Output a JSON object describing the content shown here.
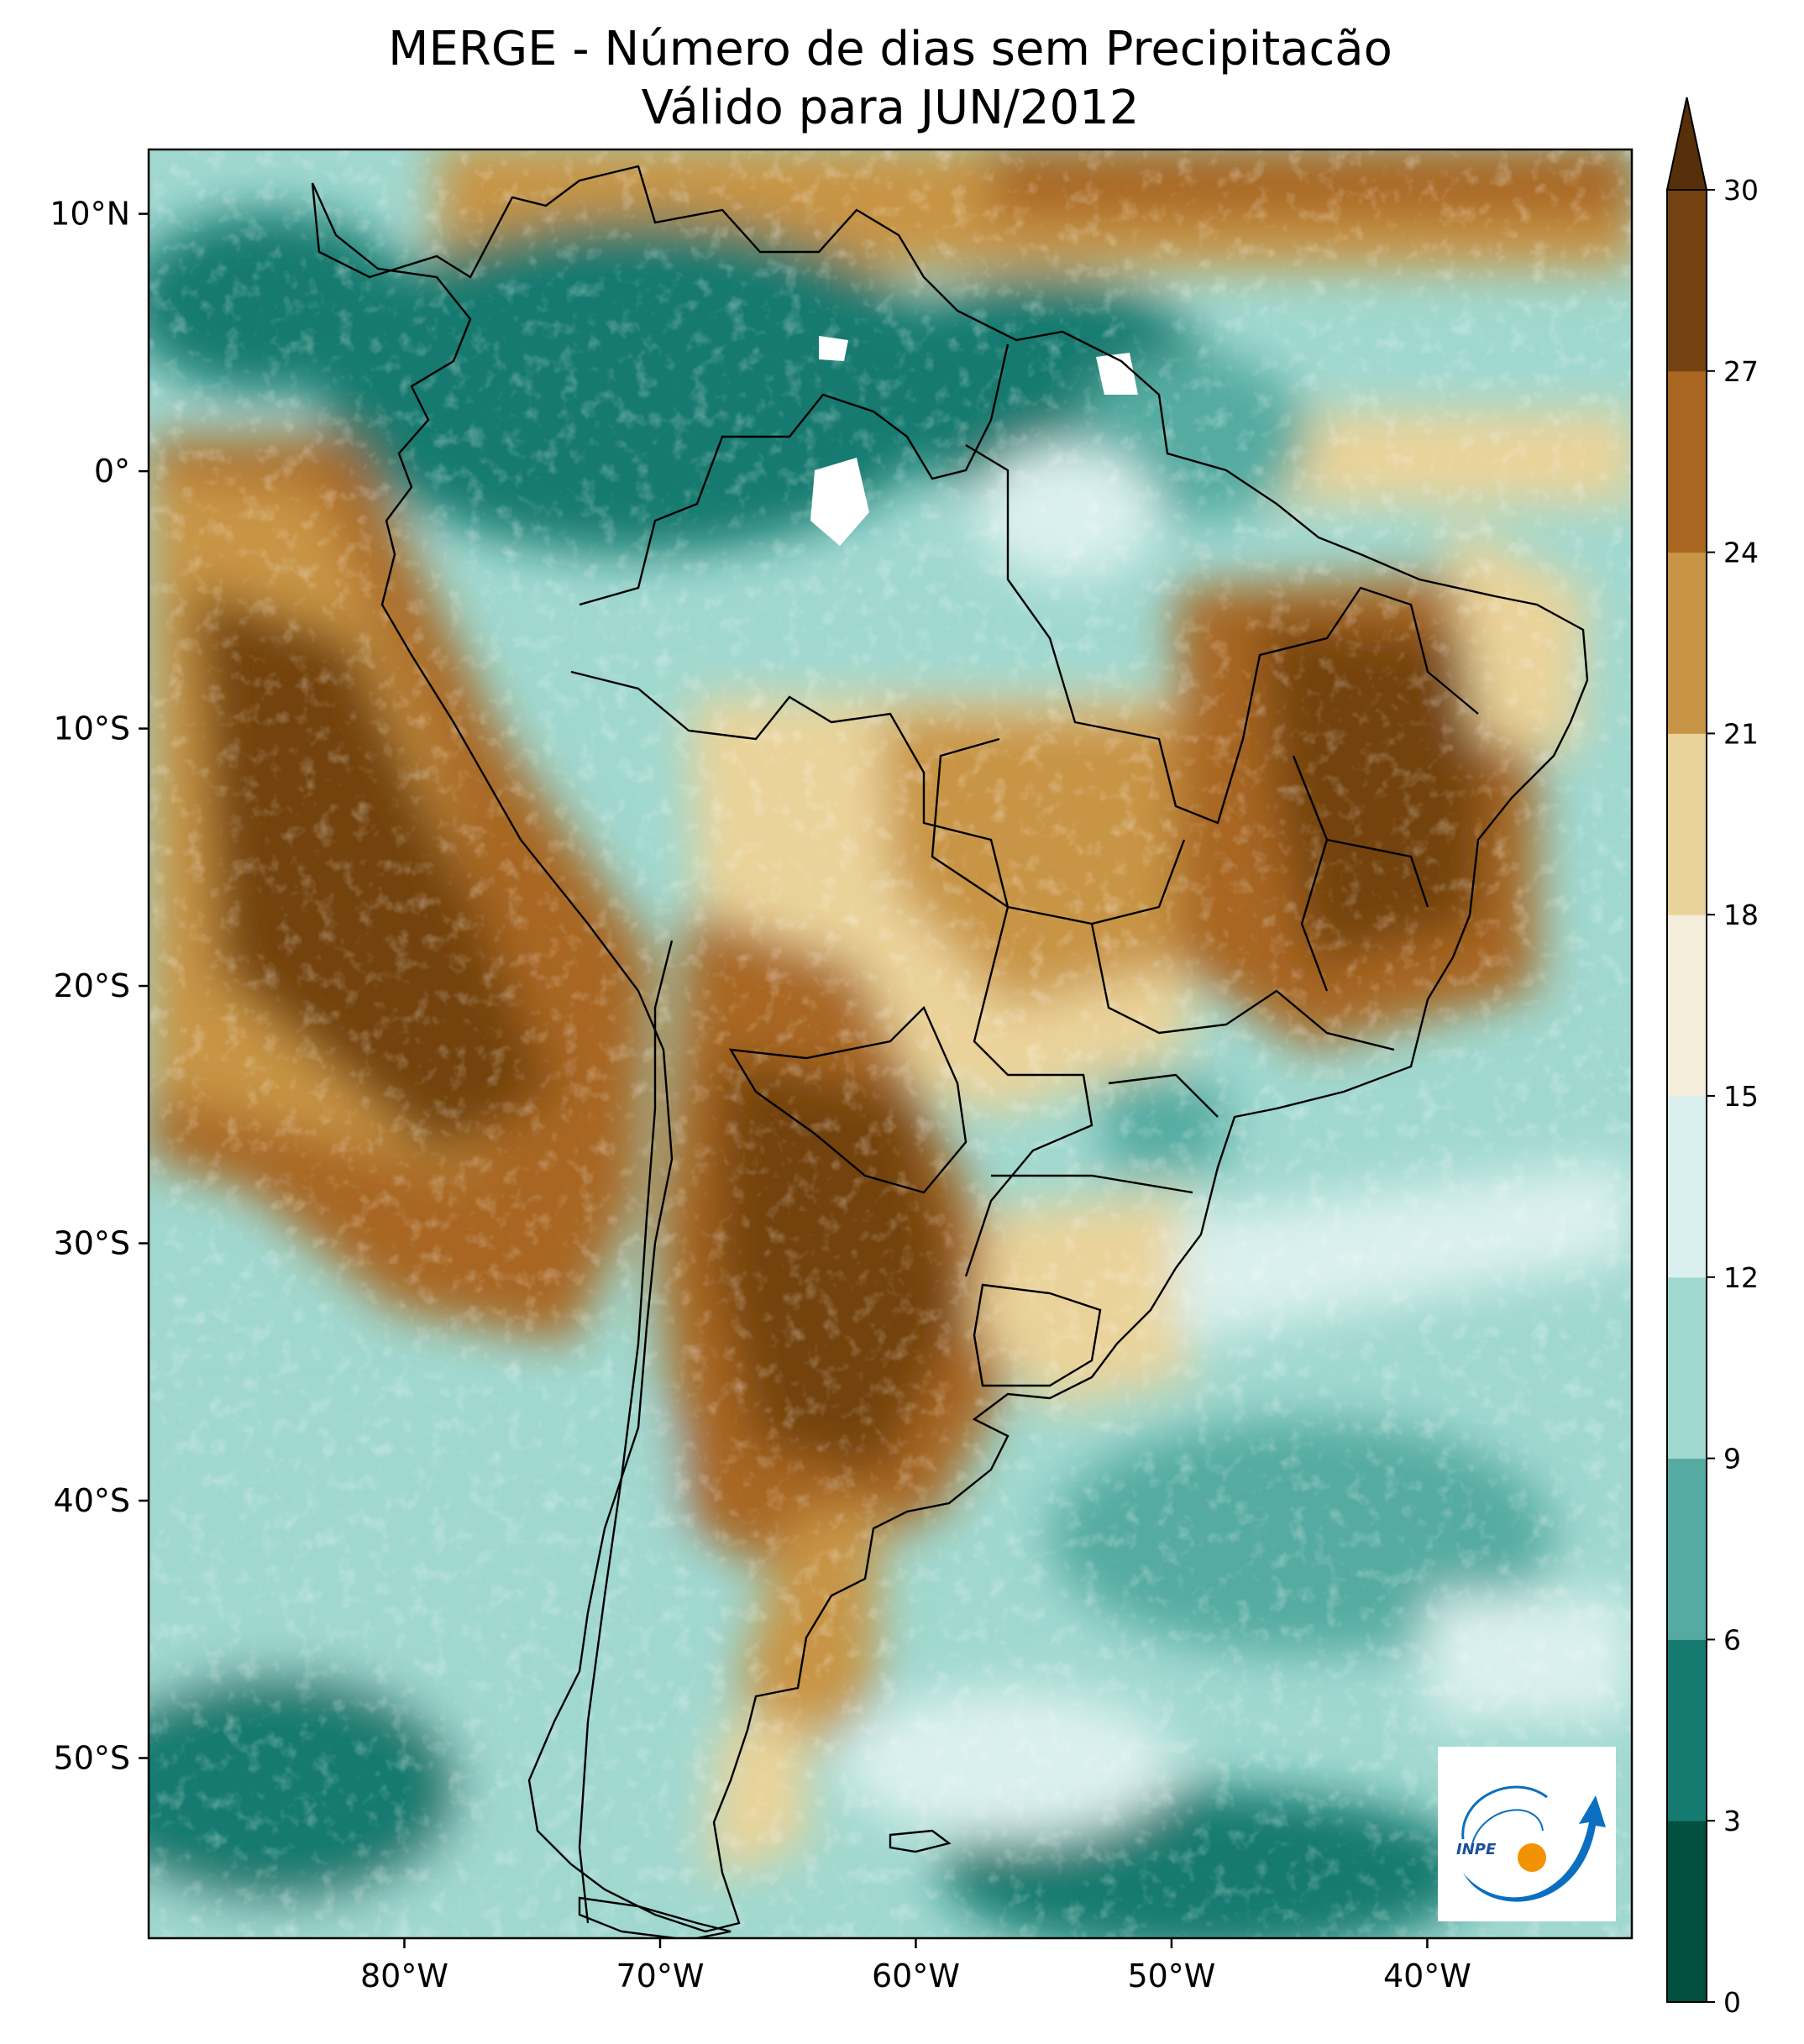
{
  "title": {
    "line1": "MERGE - Número de dias sem Precipitacão",
    "line2": "Válido para JUN/2012"
  },
  "axes": {
    "x_ticks": [
      {
        "lon": -80,
        "label": "80°W"
      },
      {
        "lon": -70,
        "label": "70°W"
      },
      {
        "lon": -60,
        "label": "60°W"
      },
      {
        "lon": -50,
        "label": "50°W"
      },
      {
        "lon": -40,
        "label": "40°W"
      }
    ],
    "y_ticks": [
      {
        "lat": 10,
        "label": "10°N"
      },
      {
        "lat": 0,
        "label": "0°"
      },
      {
        "lat": -10,
        "label": "10°S"
      },
      {
        "lat": -20,
        "label": "20°S"
      },
      {
        "lat": -30,
        "label": "30°S"
      },
      {
        "lat": -40,
        "label": "40°S"
      },
      {
        "lat": -50,
        "label": "50°S"
      }
    ],
    "lon_range": [
      -90,
      -32
    ],
    "lat_range": [
      -57,
      12.5
    ]
  },
  "colorbar": {
    "levels": [
      0,
      3,
      6,
      9,
      12,
      15,
      18,
      21,
      24,
      27,
      30
    ],
    "labels": [
      "0",
      "3",
      "6",
      "9",
      "12",
      "15",
      "18",
      "21",
      "24",
      "27",
      "30"
    ],
    "colors": [
      "#01503f",
      "#157a70",
      "#55aba1",
      "#a0d8d0",
      "#daf0ee",
      "#f5eedc",
      "#ead39a",
      "#c89445",
      "#a86620",
      "#734210"
    ],
    "extend_color": "#55300a",
    "extend": "max"
  },
  "logo": {
    "text": "INPE",
    "colors": {
      "blue": "#0a6fc0",
      "orange": "#f39200"
    }
  }
}
